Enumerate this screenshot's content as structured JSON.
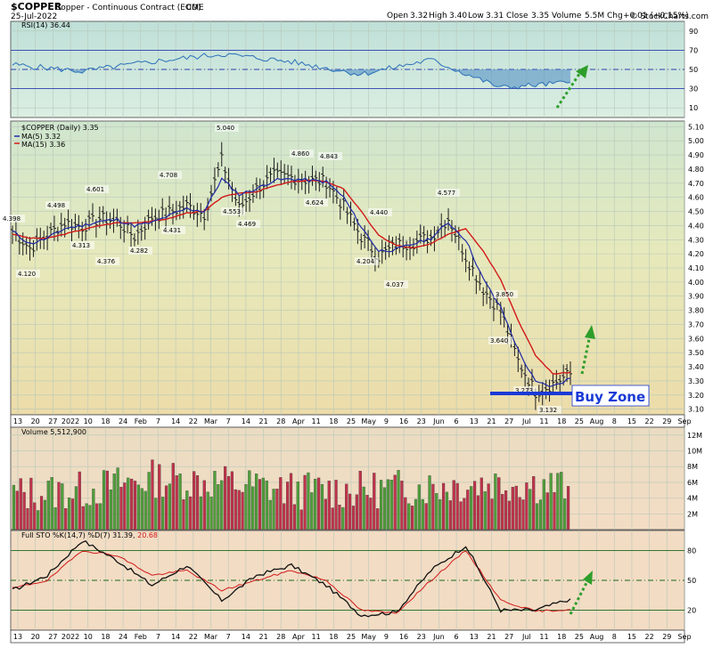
{
  "header": {
    "symbol": "$COPPER",
    "name": "Copper - Continuous Contract (EOD)",
    "exchange": "CME",
    "date": "25-Jul-2022",
    "source": "© StockCharts.com",
    "ohlc": {
      "open_label": "Open",
      "open": "3.32",
      "high_label": "High",
      "high": "3.40",
      "low_label": "Low",
      "low": "3.31",
      "close_label": "Close",
      "close": "3.35",
      "volume_label": "Volume",
      "volume": "5.5M",
      "chg_label": "Chg",
      "chg": "+0.01 (+0.15%)"
    }
  },
  "colors": {
    "rsi_bg": "#cfe6de",
    "price_bg": "#e6e6b4",
    "volume_bg": "#f2dcc0",
    "sto_bg": "#f2dcc0",
    "price_line": "#1c1c1c",
    "ma5": "#1f2aa8",
    "ma15": "#d21a1a",
    "vol_up": "#4e9f3a",
    "vol_down": "#c0324a",
    "annot_arrow": "#2e9e2a",
    "buy_zone": "#1a3ad6"
  },
  "x_axis": {
    "labels": [
      "13",
      "20",
      "27",
      "2022",
      "10",
      "18",
      "24",
      "Feb",
      "7",
      "14",
      "22",
      "Mar",
      "7",
      "14",
      "21",
      "28",
      "Apr",
      "11",
      "18",
      "25",
      "May",
      "9",
      "16",
      "23",
      "Jun",
      "6",
      "13",
      "21",
      "27",
      "Jul",
      "11",
      "18",
      "25",
      "Aug",
      "8",
      "15",
      "22",
      "29",
      "Sep"
    ]
  },
  "rsi_panel": {
    "legend": "RSI(14) 36.44",
    "ticks": [
      "90",
      "70",
      "50",
      "30",
      "10"
    ]
  },
  "price_panel": {
    "legend_main": "$COPPER (Daily) 3.35",
    "legend_ma5": "MA(5) 3.32",
    "legend_ma15": "MA(15) 3.36",
    "ticks": [
      "5.10",
      "5.00",
      "4.90",
      "4.80",
      "4.70",
      "4.60",
      "4.50",
      "4.40",
      "4.30",
      "4.20",
      "4.10",
      "4.00",
      "3.90",
      "3.80",
      "3.70",
      "3.60",
      "3.50",
      "3.40",
      "3.30",
      "3.20",
      "3.10"
    ],
    "point_labels": [
      "4.398",
      "4.120",
      "4.498",
      "4.313",
      "4.601",
      "4.376",
      "4.282",
      "4.708",
      "4.431",
      "5.040",
      "4.553",
      "4.469",
      "4.860",
      "4.624",
      "4.843",
      "4.204",
      "4.440",
      "4.037",
      "4.577",
      "3.850",
      "3.640",
      "3.273",
      "3.132"
    ],
    "buy_zone_label": "Buy Zone"
  },
  "volume_panel": {
    "legend": "Volume 5,512,900",
    "ticks": [
      "12M",
      "10M",
      "8M",
      "6M",
      "4M",
      "2M"
    ]
  },
  "sto_panel": {
    "legend_prefix": "Full STO %K(14,7) %D(7) 31.39,",
    "legend_d": "20.68",
    "ticks": [
      "80",
      "50",
      "20"
    ]
  },
  "chart_data": [
    {
      "type": "line",
      "title": "RSI(14) 36.44",
      "x": [
        "Dec 13",
        "Jan 3",
        "Feb 1",
        "Mar 1",
        "Apr 1",
        "May 2",
        "Jun 1",
        "Jul 1",
        "Jul 25"
      ],
      "series": [
        {
          "name": "RSI(14)",
          "values": [
            55,
            48,
            58,
            66,
            58,
            45,
            60,
            31,
            36.44
          ]
        }
      ],
      "ylim": [
        0,
        100
      ],
      "reference_lines": [
        70,
        50,
        30
      ]
    },
    {
      "type": "line",
      "title": "$COPPER (Daily) 3.35",
      "x": [
        "Dec 13",
        "Dec 20",
        "Dec 27",
        "Jan 3",
        "Jan 10",
        "Jan 18",
        "Jan 24",
        "Feb 1",
        "Feb 7",
        "Feb 14",
        "Feb 22",
        "Mar 1",
        "Mar 7",
        "Mar 14",
        "Mar 21",
        "Mar 28",
        "Apr 4",
        "Apr 11",
        "Apr 18",
        "Apr 25",
        "May 2",
        "May 9",
        "May 16",
        "May 23",
        "Jun 1",
        "Jun 6",
        "Jun 13",
        "Jun 21",
        "Jun 27",
        "Jul 5",
        "Jul 11",
        "Jul 18",
        "Jul 25"
      ],
      "series": [
        {
          "name": "$COPPER (Daily)",
          "values": [
            4.36,
            4.24,
            4.33,
            4.42,
            4.39,
            4.45,
            4.43,
            4.32,
            4.46,
            4.49,
            4.54,
            4.48,
            4.86,
            4.52,
            4.66,
            4.75,
            4.74,
            4.72,
            4.71,
            4.53,
            4.32,
            4.18,
            4.26,
            4.28,
            4.32,
            4.45,
            4.18,
            3.95,
            3.79,
            3.44,
            3.22,
            3.28,
            3.35
          ]
        },
        {
          "name": "MA(5) 3.32",
          "values": [
            4.36,
            4.27,
            4.31,
            4.38,
            4.4,
            4.43,
            4.44,
            4.4,
            4.42,
            4.47,
            4.52,
            4.5,
            4.73,
            4.62,
            4.66,
            4.72,
            4.73,
            4.72,
            4.71,
            4.6,
            4.39,
            4.22,
            4.23,
            4.27,
            4.31,
            4.42,
            4.3,
            4.02,
            3.82,
            3.52,
            3.29,
            3.26,
            3.32
          ]
        },
        {
          "name": "MA(15) 3.36",
          "values": [
            4.34,
            4.31,
            4.31,
            4.34,
            4.37,
            4.4,
            4.42,
            4.42,
            4.43,
            4.45,
            4.49,
            4.5,
            4.6,
            4.63,
            4.64,
            4.68,
            4.71,
            4.72,
            4.71,
            4.66,
            4.5,
            4.33,
            4.26,
            4.24,
            4.27,
            4.34,
            4.38,
            4.22,
            4.02,
            3.73,
            3.48,
            3.35,
            3.36
          ]
        }
      ],
      "ylim": [
        3.06,
        5.14
      ],
      "annotations": [
        "Buy Zone"
      ]
    },
    {
      "type": "bar",
      "title": "Volume 5,512,900",
      "x": [
        "Dec 13",
        "Jan 3",
        "Feb 1",
        "Mar 1",
        "Apr 1",
        "May 2",
        "Jun 1",
        "Jul 1",
        "Jul 25"
      ],
      "series": [
        {
          "name": "Volume",
          "values": [
            4.5,
            5.0,
            6.5,
            6.0,
            5.0,
            5.0,
            5.5,
            6.0,
            5.5
          ]
        }
      ],
      "ylim": [
        0,
        13
      ],
      "unit": "M"
    },
    {
      "type": "line",
      "title": "Full STO %K(14,7) %D(7) 31.39, 20.68",
      "x": [
        "Dec 13",
        "Dec 27",
        "Jan 10",
        "Jan 24",
        "Feb 7",
        "Feb 22",
        "Mar 7",
        "Mar 21",
        "Apr 4",
        "Apr 18",
        "May 2",
        "May 16",
        "Jun 1",
        "Jun 13",
        "Jun 27",
        "Jul 11",
        "Jul 25"
      ],
      "series": [
        {
          "name": "%K",
          "values": [
            40,
            55,
            90,
            70,
            45,
            65,
            30,
            55,
            65,
            45,
            15,
            18,
            60,
            85,
            20,
            20,
            31.39
          ]
        },
        {
          "name": "%D",
          "values": [
            42,
            50,
            80,
            75,
            55,
            60,
            40,
            50,
            60,
            50,
            20,
            17,
            50,
            80,
            30,
            19,
            20.68
          ]
        }
      ],
      "ylim": [
        0,
        100
      ],
      "reference_lines": [
        80,
        50,
        20
      ]
    }
  ]
}
